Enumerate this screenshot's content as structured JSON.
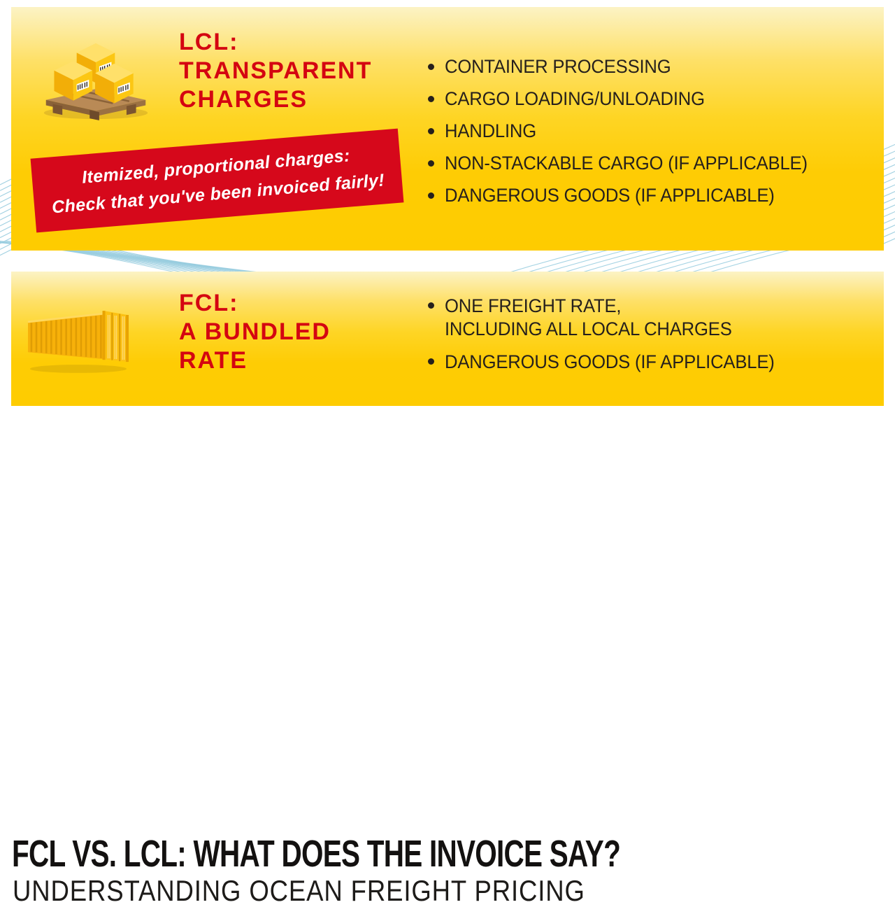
{
  "colors": {
    "panel_yellow": "#FECC00",
    "panel_yellow_light": "#FCF3C5",
    "accent_red": "#D40511",
    "banner_red": "#D6081B",
    "text_dark": "#26201C",
    "wave_blue": "#8FC8DC"
  },
  "lcl_panel": {
    "icon": "pallet-boxes-icon",
    "title_lines": [
      "LCL:",
      "TRANSPARENT",
      "CHARGES"
    ],
    "banner_lines": [
      "Itemized, proportional charges:",
      "Check that you've been invoiced fairly!"
    ],
    "bullets": [
      "CONTAINER PROCESSING",
      "CARGO LOADING/UNLOADING",
      "HANDLING",
      "NON-STACKABLE CARGO (IF APPLICABLE)",
      "DANGEROUS GOODS (IF APPLICABLE)"
    ]
  },
  "fcl_panel": {
    "icon": "shipping-container-icon",
    "title_lines": [
      "FCL:",
      "A BUNDLED",
      "RATE"
    ],
    "bullets": [
      [
        "ONE FREIGHT RATE,",
        "INCLUDING ALL LOCAL CHARGES"
      ],
      [
        "DANGEROUS GOODS (IF APPLICABLE)"
      ]
    ]
  },
  "footer": {
    "headline": "FCL VS. LCL: WHAT DOES THE INVOICE SAY?",
    "subtitle": "UNDERSTANDING OCEAN FREIGHT PRICING"
  }
}
